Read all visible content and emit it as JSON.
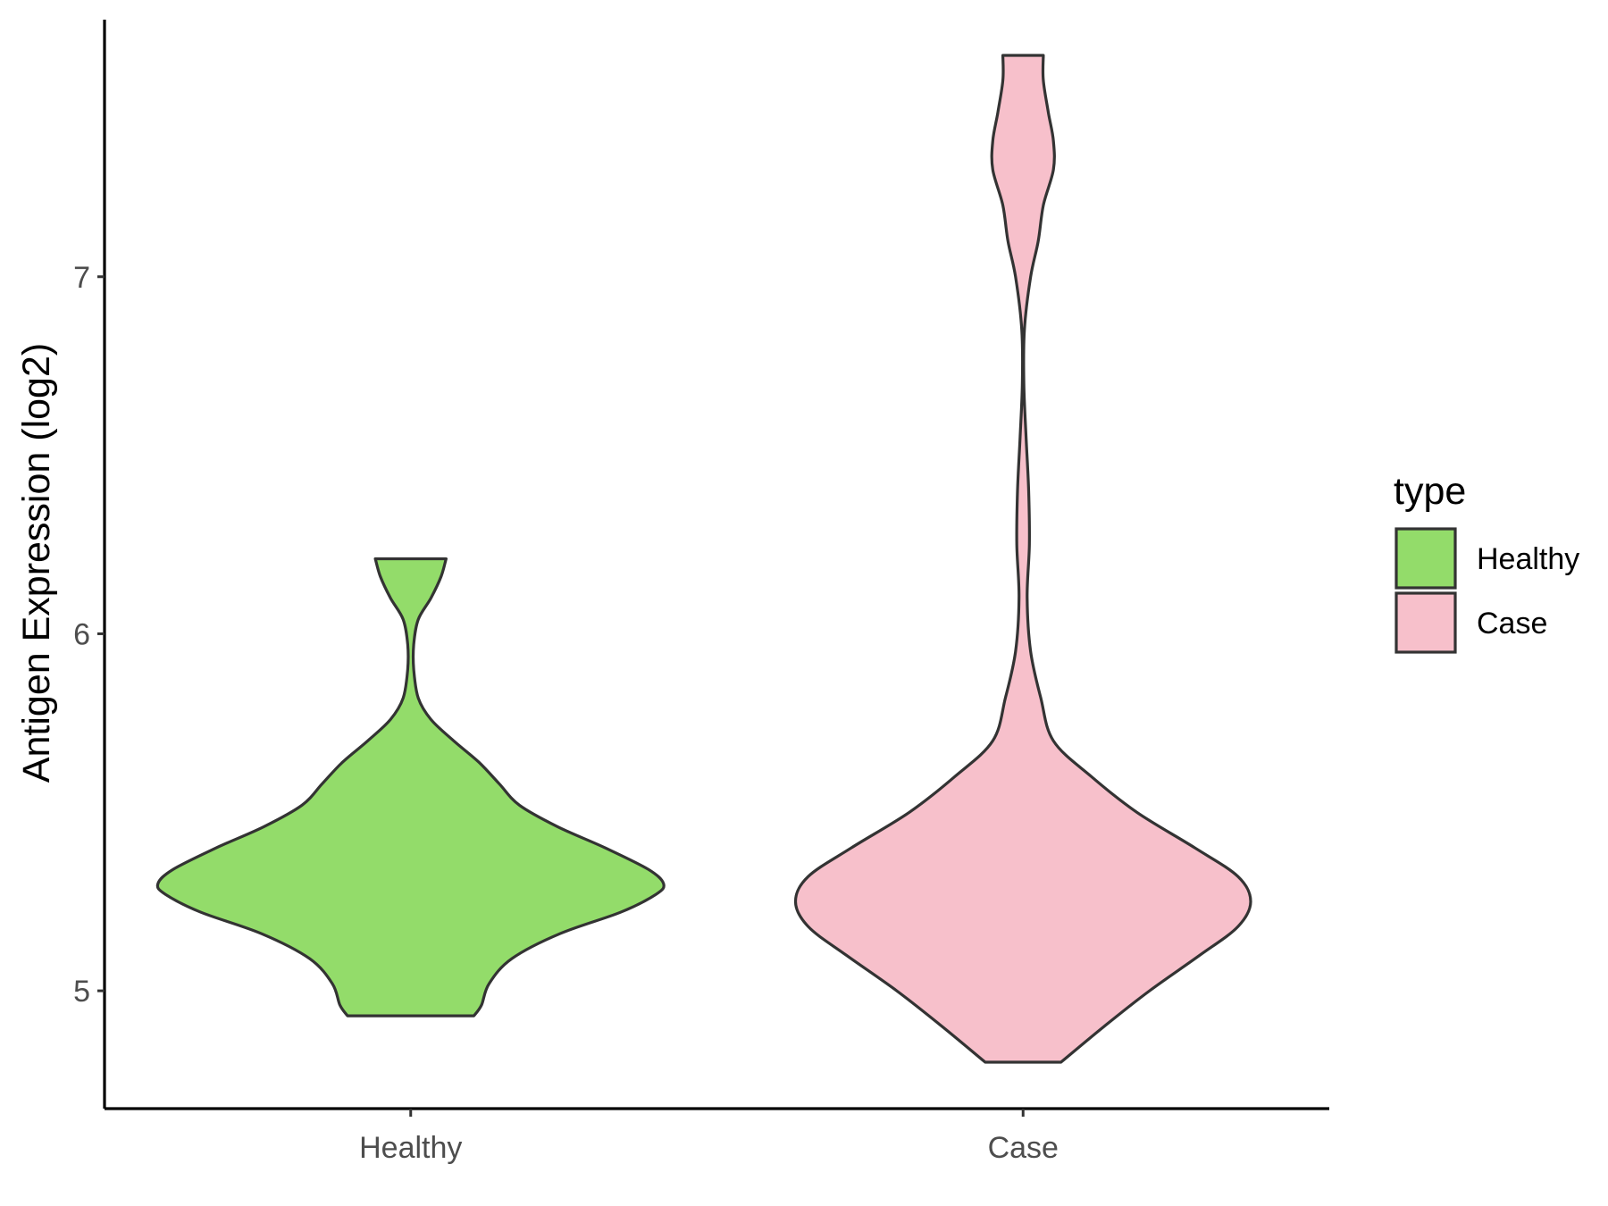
{
  "chart_data": {
    "type": "violin",
    "title": "",
    "xlabel": "",
    "ylabel": "Antigen Expression (log2)",
    "categories": [
      "Healthy",
      "Case"
    ],
    "yticks": [
      5,
      6,
      7
    ],
    "ylim": [
      4.67,
      7.72
    ],
    "grid": false,
    "legend": {
      "title": "type",
      "position": "right",
      "entries": [
        {
          "label": "Healthy",
          "color": "#93dc6a"
        },
        {
          "label": "Case",
          "color": "#f7c0cb"
        }
      ]
    },
    "series": [
      {
        "category": "Healthy",
        "color": "#93dc6a",
        "y_min": 4.93,
        "y_max": 6.21,
        "density_profile": [
          {
            "y": 4.93,
            "w": 0.25
          },
          {
            "y": 4.96,
            "w": 0.28
          },
          {
            "y": 5.02,
            "w": 0.31
          },
          {
            "y": 5.09,
            "w": 0.4
          },
          {
            "y": 5.16,
            "w": 0.59
          },
          {
            "y": 5.22,
            "w": 0.83
          },
          {
            "y": 5.27,
            "w": 0.97
          },
          {
            "y": 5.3,
            "w": 1.0
          },
          {
            "y": 5.34,
            "w": 0.94
          },
          {
            "y": 5.4,
            "w": 0.77
          },
          {
            "y": 5.46,
            "w": 0.58
          },
          {
            "y": 5.52,
            "w": 0.43
          },
          {
            "y": 5.58,
            "w": 0.35
          },
          {
            "y": 5.64,
            "w": 0.27
          },
          {
            "y": 5.7,
            "w": 0.17
          },
          {
            "y": 5.76,
            "w": 0.08
          },
          {
            "y": 5.82,
            "w": 0.03
          },
          {
            "y": 5.9,
            "w": 0.012
          },
          {
            "y": 5.97,
            "w": 0.012
          },
          {
            "y": 6.04,
            "w": 0.03
          },
          {
            "y": 6.1,
            "w": 0.08
          },
          {
            "y": 6.16,
            "w": 0.12
          },
          {
            "y": 6.21,
            "w": 0.14
          }
        ]
      },
      {
        "category": "Case",
        "color": "#f7c0cb",
        "y_min": 4.8,
        "y_max": 7.62,
        "density_profile": [
          {
            "y": 4.8,
            "w": 0.15
          },
          {
            "y": 4.9,
            "w": 0.32
          },
          {
            "y": 5.0,
            "w": 0.5
          },
          {
            "y": 5.1,
            "w": 0.7
          },
          {
            "y": 5.18,
            "w": 0.85
          },
          {
            "y": 5.25,
            "w": 0.9
          },
          {
            "y": 5.32,
            "w": 0.85
          },
          {
            "y": 5.4,
            "w": 0.68
          },
          {
            "y": 5.5,
            "w": 0.45
          },
          {
            "y": 5.6,
            "w": 0.27
          },
          {
            "y": 5.7,
            "w": 0.12
          },
          {
            "y": 5.82,
            "w": 0.07
          },
          {
            "y": 5.95,
            "w": 0.03
          },
          {
            "y": 6.1,
            "w": 0.016
          },
          {
            "y": 6.25,
            "w": 0.025
          },
          {
            "y": 6.4,
            "w": 0.022
          },
          {
            "y": 6.55,
            "w": 0.012
          },
          {
            "y": 6.7,
            "w": 0.003
          },
          {
            "y": 6.85,
            "w": 0.005
          },
          {
            "y": 7.0,
            "w": 0.03
          },
          {
            "y": 7.1,
            "w": 0.06
          },
          {
            "y": 7.2,
            "w": 0.08
          },
          {
            "y": 7.3,
            "w": 0.12
          },
          {
            "y": 7.38,
            "w": 0.12
          },
          {
            "y": 7.46,
            "w": 0.1
          },
          {
            "y": 7.55,
            "w": 0.08
          },
          {
            "y": 7.62,
            "w": 0.08
          }
        ]
      }
    ]
  }
}
